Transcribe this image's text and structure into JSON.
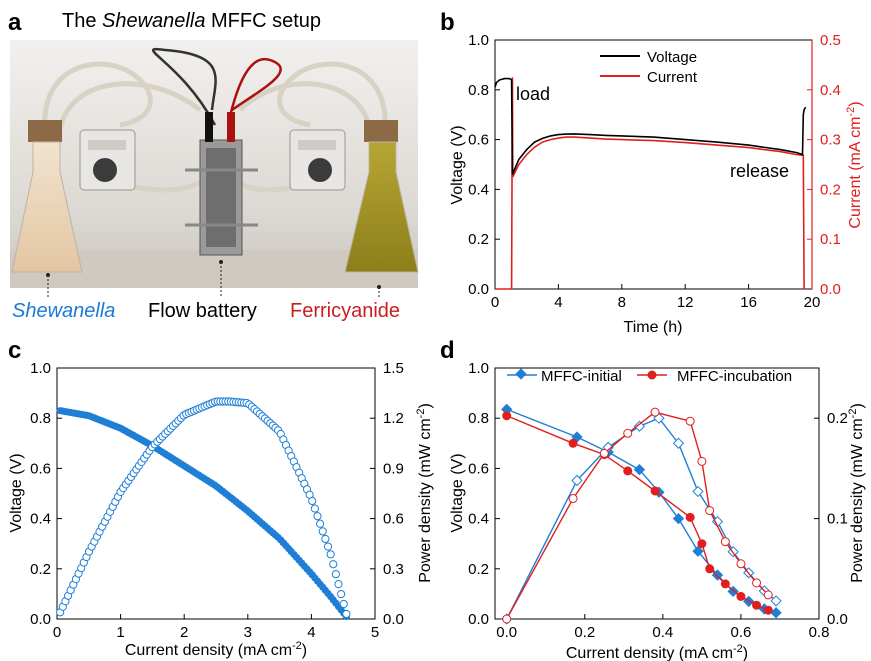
{
  "colors": {
    "blue": "#1f7fd6",
    "red": "#e01f1f",
    "black": "#000000",
    "caption_blue": "#1a7ad3",
    "caption_red": "#c81e1e"
  },
  "panel_a": {
    "letter": "a",
    "title_prefix": "The ",
    "title_italic": "Shewanella",
    "title_suffix": " MFFC setup",
    "caption_left": "Shewanella",
    "caption_mid": "Flow battery",
    "caption_right": "Ferricyanide",
    "photo_icons": [
      "flask-icon",
      "pump-icon",
      "flow-battery-icon",
      "pump-icon",
      "flask-icon"
    ]
  },
  "chart_data": [
    {
      "panel": "b",
      "type": "line",
      "xlabel": "Time (h)",
      "ylabel": "Voltage (V)",
      "y2label_parts": [
        "Current (mA cm",
        "-2",
        ")"
      ],
      "xlim": [
        0,
        20
      ],
      "ylim": [
        0,
        1.0
      ],
      "y2lim": [
        0,
        0.5
      ],
      "xticks": [
        "0",
        "4",
        "8",
        "12",
        "16",
        "20"
      ],
      "yticks": [
        "0.0",
        "0.2",
        "0.4",
        "0.6",
        "0.8",
        "1.0"
      ],
      "y2ticks": [
        "0.0",
        "0.1",
        "0.2",
        "0.3",
        "0.4",
        "0.5"
      ],
      "legend": [
        "Voltage",
        "Current"
      ],
      "legend_position": "top-right",
      "annotations": [
        "load",
        "release"
      ],
      "series": [
        {
          "name": "Voltage",
          "axis": "left",
          "color": "#000000",
          "x": [
            0,
            0.1,
            0.3,
            0.6,
            0.9,
            1.05,
            1.1,
            1.5,
            2,
            2.5,
            3,
            3.5,
            4,
            4.5,
            5,
            6,
            7,
            8,
            10,
            12,
            14,
            16,
            18,
            19,
            19.4,
            19.45,
            19.5,
            19.6
          ],
          "values": [
            0.81,
            0.83,
            0.84,
            0.845,
            0.845,
            0.84,
            0.46,
            0.52,
            0.56,
            0.59,
            0.605,
            0.615,
            0.62,
            0.622,
            0.623,
            0.62,
            0.617,
            0.615,
            0.61,
            0.6,
            0.59,
            0.578,
            0.56,
            0.548,
            0.54,
            0.7,
            0.72,
            0.73
          ]
        },
        {
          "name": "Current",
          "axis": "right",
          "color": "#e01f1f",
          "x": [
            0,
            1.05,
            1.1,
            1.12,
            1.5,
            2,
            2.5,
            3,
            3.5,
            4,
            4.5,
            5,
            6,
            7,
            8,
            10,
            12,
            14,
            16,
            18,
            19,
            19.45,
            19.5,
            19.55,
            19.6
          ],
          "values": [
            0.0,
            0.0,
            0.425,
            0.225,
            0.25,
            0.27,
            0.285,
            0.295,
            0.3,
            0.303,
            0.305,
            0.305,
            0.303,
            0.301,
            0.3,
            0.298,
            0.294,
            0.289,
            0.284,
            0.276,
            0.27,
            0.268,
            0.0,
            0.0,
            0.0
          ]
        }
      ]
    },
    {
      "panel": "c",
      "type": "scatter",
      "xlabel_parts": [
        "Current density (mA cm",
        "-2",
        ")"
      ],
      "ylabel": "Voltage (V)",
      "y2label_parts": [
        "Power density (mW cm",
        "-2",
        ")"
      ],
      "xlim": [
        0,
        5
      ],
      "ylim": [
        0,
        1.0
      ],
      "y2lim": [
        0,
        1.5
      ],
      "xticks": [
        "0",
        "1",
        "2",
        "3",
        "4",
        "5"
      ],
      "yticks": [
        "0.0",
        "0.2",
        "0.4",
        "0.6",
        "0.8",
        "1.0"
      ],
      "y2ticks": [
        "0.0",
        "0.3",
        "0.6",
        "0.9",
        "1.2",
        "1.5"
      ],
      "series": [
        {
          "name": "Voltage",
          "axis": "left",
          "marker": "filled-circle",
          "color": "#1f7fd6",
          "x": [
            0.05,
            0.5,
            1.0,
            1.5,
            2.0,
            2.5,
            3.0,
            3.5,
            4.0,
            4.3,
            4.55
          ],
          "values": [
            0.83,
            0.81,
            0.76,
            0.69,
            0.61,
            0.53,
            0.43,
            0.32,
            0.18,
            0.09,
            0.01
          ]
        },
        {
          "name": "Power density",
          "axis": "right",
          "marker": "open-circle",
          "color": "#1f7fd6",
          "x": [
            0.05,
            0.5,
            1.0,
            1.5,
            2.0,
            2.5,
            2.7,
            3.0,
            3.5,
            4.0,
            4.3,
            4.55
          ],
          "values": [
            0.04,
            0.4,
            0.76,
            1.03,
            1.22,
            1.3,
            1.3,
            1.29,
            1.12,
            0.72,
            0.39,
            0.03
          ]
        }
      ]
    },
    {
      "panel": "d",
      "type": "line",
      "xlabel_parts": [
        "Current density (mA cm",
        "-2",
        ")"
      ],
      "ylabel": "Voltage (V)",
      "y2label_parts": [
        "Power density (mW cm",
        "-2",
        ")"
      ],
      "xlim": [
        -0.03,
        0.8
      ],
      "ylim": [
        0,
        1.0
      ],
      "y2lim": [
        0,
        0.25
      ],
      "xticks": [
        "0.0",
        "0.2",
        "0.4",
        "0.6",
        "0.8"
      ],
      "xtick_values": [
        0,
        0.2,
        0.4,
        0.6,
        0.8
      ],
      "yticks": [
        "0.0",
        "0.2",
        "0.4",
        "0.6",
        "0.8",
        "1.0"
      ],
      "y2ticks": [
        "0.0",
        "0.1",
        "0.2"
      ],
      "y2tick_values": [
        0,
        0.1,
        0.2
      ],
      "legend": [
        "MFFC-initial",
        "MFFC-incubation"
      ],
      "legend_position": "top",
      "series": [
        {
          "name": "MFFC-initial",
          "quantity": "voltage",
          "axis": "left",
          "marker": "filled-diamond",
          "color": "#1f7fd6",
          "x": [
            0.0,
            0.18,
            0.26,
            0.34,
            0.39,
            0.44,
            0.49,
            0.54,
            0.58,
            0.62,
            0.66,
            0.69
          ],
          "values": [
            0.835,
            0.725,
            0.665,
            0.595,
            0.505,
            0.4,
            0.27,
            0.175,
            0.11,
            0.07,
            0.04,
            0.025
          ]
        },
        {
          "name": "MFFC-incubation",
          "quantity": "voltage",
          "axis": "left",
          "marker": "filled-circle",
          "color": "#e01f1f",
          "x": [
            0.0,
            0.17,
            0.25,
            0.31,
            0.38,
            0.47,
            0.5,
            0.52,
            0.56,
            0.6,
            0.64,
            0.67
          ],
          "values": [
            0.81,
            0.7,
            0.655,
            0.59,
            0.51,
            0.405,
            0.3,
            0.2,
            0.14,
            0.09,
            0.055,
            0.035
          ]
        },
        {
          "name": "MFFC-initial",
          "quantity": "power",
          "axis": "right",
          "marker": "open-diamond",
          "color": "#1f7fd6",
          "x": [
            0.0,
            0.18,
            0.26,
            0.34,
            0.39,
            0.44,
            0.49,
            0.54,
            0.58,
            0.62,
            0.66,
            0.69
          ],
          "values": [
            0.0,
            0.138,
            0.171,
            0.192,
            0.2,
            0.175,
            0.127,
            0.097,
            0.067,
            0.046,
            0.028,
            0.018
          ]
        },
        {
          "name": "MFFC-incubation",
          "quantity": "power",
          "axis": "right",
          "marker": "open-circle",
          "color": "#e01f1f",
          "x": [
            0.0,
            0.17,
            0.25,
            0.31,
            0.38,
            0.47,
            0.5,
            0.52,
            0.56,
            0.6,
            0.64,
            0.67
          ],
          "values": [
            0.0,
            0.12,
            0.165,
            0.185,
            0.206,
            0.197,
            0.157,
            0.108,
            0.077,
            0.055,
            0.036,
            0.024
          ]
        }
      ]
    }
  ]
}
